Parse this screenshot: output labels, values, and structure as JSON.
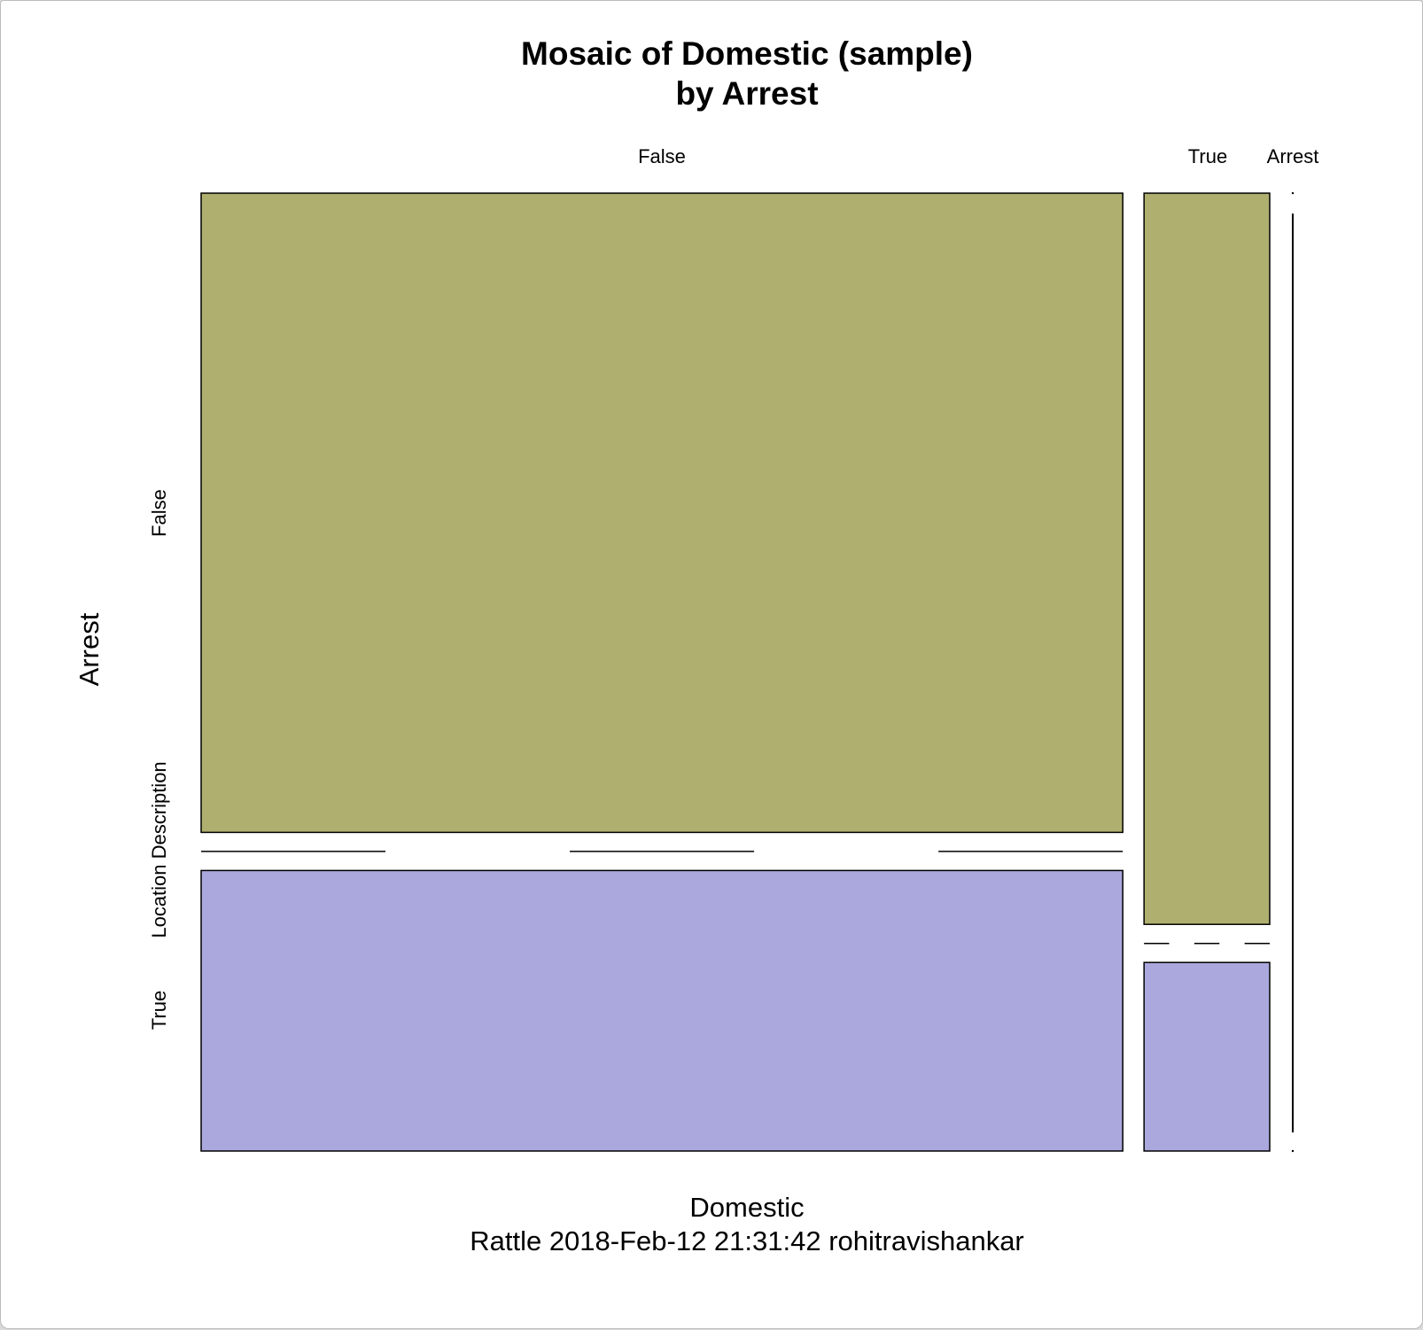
{
  "chart_data": {
    "type": "mosaic",
    "title_lines": [
      "Mosaic of Domestic (sample)",
      "by Arrest"
    ],
    "xlabel": "Domestic",
    "ylabel": "Arrest",
    "subtitle": "Rattle 2018-Feb-12 21:31:42 rohitravishankar",
    "column_variable_label": "Arrest",
    "row_variable_label": "Location Description",
    "domestic_levels": [
      "False",
      "True"
    ],
    "arrest_levels": [
      "False",
      "True"
    ],
    "column_proportions": [
      0.88,
      0.12
    ],
    "arrest_proportions_within_domestic": [
      {
        "domestic": "False",
        "arrest_false": 0.695,
        "arrest_true": 0.305
      },
      {
        "domestic": "True",
        "arrest_false": 0.795,
        "arrest_true": 0.205
      }
    ],
    "colors": {
      "arrest_false": "#AFAF70",
      "arrest_true": "#AAA8DD"
    }
  }
}
